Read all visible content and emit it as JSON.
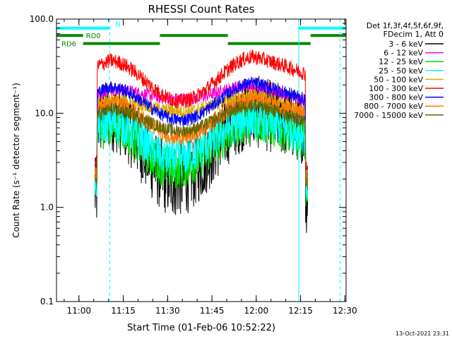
{
  "chart_data": {
    "type": "line",
    "title": "RHESSI Count Rates",
    "xlabel": "Start Time (01-Feb-06 10:52:22)",
    "ylabel": "Count Rate (s⁻¹ detector segment⁻¹)",
    "yscale": "log",
    "ylim": [
      0.1,
      100
    ],
    "xlim_minutes_after_start": [
      0,
      98
    ],
    "x_tick_labels": [
      "11:00",
      "11:15",
      "11:30",
      "11:45",
      "12:00",
      "12:15",
      "12:30"
    ],
    "x_tick_minutes_after_start": [
      7.6,
      22.6,
      37.6,
      52.6,
      67.6,
      82.6,
      97.6
    ],
    "y_tick_labels": [
      "100.0",
      "10.0",
      "1.0",
      "0.1"
    ],
    "y_tick_values": [
      100,
      10,
      1,
      0.1
    ],
    "grid": false,
    "legend_position": "right",
    "legend_header": [
      "Det 1f,3f,4f,5f,6f,9f,",
      "FDecim 1, Att 0"
    ],
    "footer_date": "13-Oct-2021 23:31",
    "series": [
      {
        "name": "3 - 6 keV",
        "color": "#000000",
        "start": 13,
        "end": 85,
        "edge": 1.4,
        "side": 9.5,
        "middle": 1.9,
        "min_at": 40,
        "noise": 0.17
      },
      {
        "name": "6 - 12 keV",
        "color": "#ff00cc",
        "start": 13,
        "end": 85,
        "edge": 2.0,
        "side": 18,
        "middle": 14,
        "min_at": 42,
        "noise": 0.03
      },
      {
        "name": "12 - 25 keV",
        "color": "#00dd00",
        "start": 13,
        "end": 85,
        "edge": 1.8,
        "side": 7.5,
        "middle": 2.6,
        "min_at": 40,
        "noise": 0.1
      },
      {
        "name": "25 - 50 keV",
        "color": "#00ffff",
        "start": 13,
        "end": 85,
        "edge": 1.9,
        "side": 8.0,
        "middle": 3.3,
        "min_at": 40,
        "noise": 0.09
      },
      {
        "name": "50 - 100 keV",
        "color": "#ddaa00",
        "start": 13,
        "end": 85,
        "edge": 2.2,
        "side": 14,
        "middle": 10.5,
        "min_at": 42,
        "noise": 0.03
      },
      {
        "name": "100 - 300 keV",
        "color": "#ff0000",
        "start": 13,
        "end": 85,
        "edge": 3.0,
        "side": 36,
        "middle": 13.5,
        "min_at": 42,
        "noise": 0.035
      },
      {
        "name": "300 - 800 keV",
        "color": "#0000ff",
        "start": 13,
        "end": 85,
        "edge": 2.5,
        "side": 19,
        "middle": 8.5,
        "min_at": 42,
        "noise": 0.03
      },
      {
        "name": "800 - 7000 keV",
        "color": "#ff7700",
        "start": 13,
        "end": 85,
        "edge": 2.3,
        "side": 13,
        "middle": 5.5,
        "min_at": 42,
        "noise": 0.04
      },
      {
        "name": "7000 - 15000 keV",
        "color": "#666600",
        "start": 13,
        "end": 85,
        "edge": 2.0,
        "side": 11,
        "middle": 6.5,
        "min_at": 42,
        "noise": 0.03
      }
    ],
    "flag_bars": [
      {
        "label": "N",
        "color": "#00ffff",
        "value": 80,
        "segments": [
          [
            0,
            18
          ],
          [
            82,
            98
          ]
        ]
      },
      {
        "label": "RD0",
        "color": "#008800",
        "value": 67,
        "segments": [
          [
            0,
            9
          ],
          [
            35,
            58
          ],
          [
            86,
            98
          ]
        ]
      },
      {
        "label": "RD6",
        "color": "#008800",
        "value": 55,
        "segments": [
          [
            9,
            35
          ],
          [
            58,
            86
          ]
        ]
      }
    ],
    "vertical_lines": [
      {
        "minute": 0,
        "color": "#00ffff",
        "style": "solid"
      },
      {
        "minute": 18,
        "color": "#00ffff",
        "style": "dashed"
      },
      {
        "minute": 82,
        "color": "#00ffff",
        "style": "solid"
      },
      {
        "minute": 96,
        "color": "#00ffff",
        "style": "dashed"
      }
    ]
  }
}
